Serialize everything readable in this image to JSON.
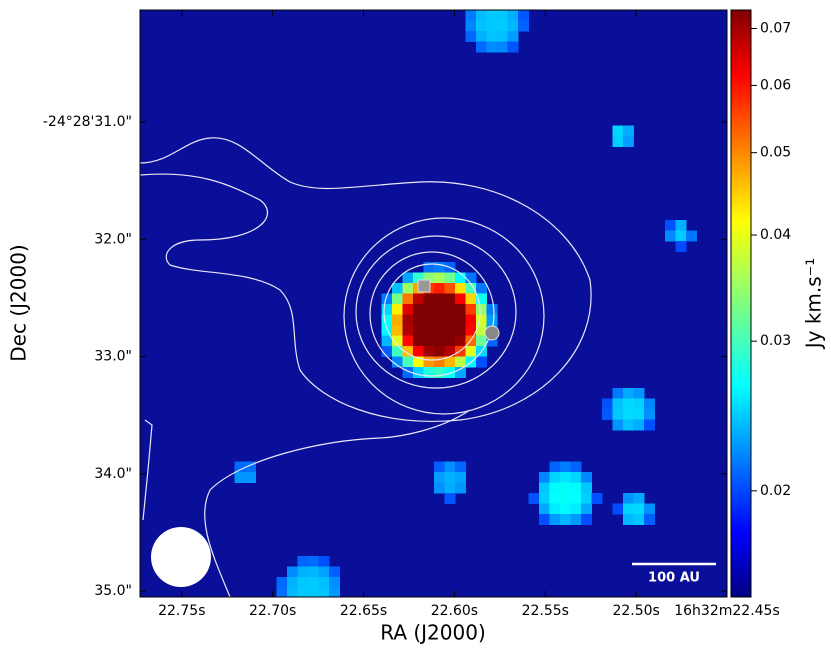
{
  "chart_data": {
    "type": "image",
    "xlabel": "RA (J2000)",
    "ylabel": "Dec (J2000)",
    "xlim": [
      22.773,
      22.45
    ],
    "xticks": [
      {
        "value": 22.75,
        "label": "22.75s"
      },
      {
        "value": 22.7,
        "label": "22.70s"
      },
      {
        "value": 22.65,
        "label": "22.65s"
      },
      {
        "value": 22.6,
        "label": "22.60s"
      },
      {
        "value": 22.55,
        "label": "22.55s"
      },
      {
        "value": 22.5,
        "label": "22.50s"
      },
      {
        "value": 22.45,
        "label": "16h32m22.45s"
      }
    ],
    "ylim": [
      35.05,
      30.045
    ],
    "yticks": [
      {
        "value": 31,
        "label": "-24°28'31.0\""
      },
      {
        "value": 32,
        "label": "32.0\""
      },
      {
        "value": 33,
        "label": "33.0\""
      },
      {
        "value": 34,
        "label": "34.0\""
      },
      {
        "value": 35,
        "label": "35.0\""
      }
    ],
    "colorbar": {
      "label": "Jy km.s⁻¹",
      "log": true,
      "lim": [
        0.015,
        0.0736
      ],
      "ticks": [
        0.02,
        0.03,
        0.04,
        0.05,
        0.06,
        0.07
      ]
    },
    "scalebar": "100 AU"
  }
}
